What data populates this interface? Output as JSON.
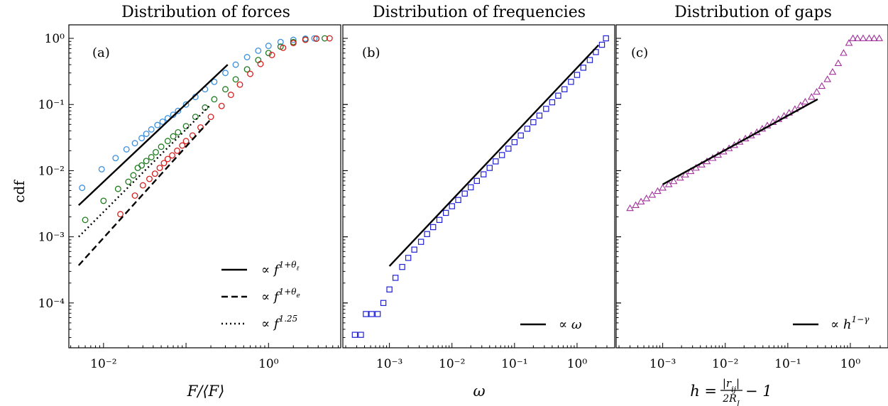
{
  "colors": {
    "light_blue": "#3a8fe0",
    "green": "#1e7a1e",
    "red": "#d62020",
    "blue": "#1f1fd6",
    "purple": "#a0309a",
    "black": "#000000"
  },
  "figure": {
    "ylabel": "cdf",
    "panels": [
      {
        "title": "Distribution of forces",
        "tag": "(a)",
        "xlabel": "F/⟨F⟩"
      },
      {
        "title": "Distribution of frequencies",
        "tag": "(b)",
        "xlabel": "ω"
      },
      {
        "title": "Distribution of gaps",
        "tag": "(c)",
        "xlabel": "h = |rᵢⱼ|/2R_J − 1"
      }
    ]
  },
  "chart_data": [
    {
      "type": "scatter",
      "title": "Distribution of forces",
      "panel_label": "(a)",
      "xlabel": "F/⟨F⟩",
      "ylabel": "cdf",
      "xscale": "log",
      "yscale": "log",
      "xlim": [
        0.0038,
        7.5
      ],
      "ylim": [
        2.1e-05,
        1.6
      ],
      "x_ticks": [
        {
          "value": 0.01,
          "label": "10⁻²"
        },
        {
          "value": 1,
          "label": "10⁰"
        }
      ],
      "y_ticks": [
        {
          "value": 0.0001,
          "label": "10⁻⁴"
        },
        {
          "value": 0.001,
          "label": "10⁻³"
        },
        {
          "value": 0.01,
          "label": "10⁻²"
        },
        {
          "value": 0.1,
          "label": "10⁻¹"
        },
        {
          "value": 1,
          "label": "10⁰"
        }
      ],
      "series": [
        {
          "marker": "circle",
          "color": "#3a8fe0",
          "points": [
            [
              0.0055,
              0.0055
            ],
            [
              0.0095,
              0.0105
            ],
            [
              0.014,
              0.0155
            ],
            [
              0.019,
              0.021
            ],
            [
              0.024,
              0.026
            ],
            [
              0.029,
              0.031
            ],
            [
              0.033,
              0.036
            ],
            [
              0.038,
              0.042
            ],
            [
              0.045,
              0.049
            ],
            [
              0.052,
              0.055
            ],
            [
              0.06,
              0.062
            ],
            [
              0.07,
              0.07
            ],
            [
              0.08,
              0.08
            ],
            [
              0.1,
              0.1
            ],
            [
              0.13,
              0.13
            ],
            [
              0.17,
              0.17
            ],
            [
              0.22,
              0.22
            ],
            [
              0.3,
              0.3
            ],
            [
              0.4,
              0.4
            ],
            [
              0.55,
              0.52
            ],
            [
              0.75,
              0.65
            ],
            [
              1.0,
              0.77
            ],
            [
              1.4,
              0.88
            ],
            [
              2.0,
              0.95
            ],
            [
              2.8,
              0.99
            ],
            [
              3.6,
              1.0
            ]
          ]
        },
        {
          "marker": "circle",
          "color": "#1e7a1e",
          "points": [
            [
              0.006,
              0.0018
            ],
            [
              0.01,
              0.0035
            ],
            [
              0.015,
              0.0053
            ],
            [
              0.02,
              0.0068
            ],
            [
              0.023,
              0.0085
            ],
            [
              0.026,
              0.011
            ],
            [
              0.029,
              0.012
            ],
            [
              0.033,
              0.014
            ],
            [
              0.038,
              0.016
            ],
            [
              0.043,
              0.019
            ],
            [
              0.05,
              0.023
            ],
            [
              0.06,
              0.028
            ],
            [
              0.07,
              0.033
            ],
            [
              0.08,
              0.038
            ],
            [
              0.1,
              0.047
            ],
            [
              0.13,
              0.065
            ],
            [
              0.17,
              0.09
            ],
            [
              0.22,
              0.12
            ],
            [
              0.3,
              0.17
            ],
            [
              0.4,
              0.24
            ],
            [
              0.55,
              0.34
            ],
            [
              0.75,
              0.47
            ],
            [
              1.0,
              0.6
            ],
            [
              1.4,
              0.75
            ],
            [
              2.0,
              0.88
            ],
            [
              2.8,
              0.96
            ],
            [
              3.8,
              0.99
            ],
            [
              4.8,
              1.0
            ]
          ]
        },
        {
          "marker": "circle",
          "color": "#d62020",
          "points": [
            [
              0.016,
              0.0022
            ],
            [
              0.024,
              0.0042
            ],
            [
              0.03,
              0.006
            ],
            [
              0.036,
              0.0075
            ],
            [
              0.042,
              0.009
            ],
            [
              0.048,
              0.011
            ],
            [
              0.054,
              0.013
            ],
            [
              0.06,
              0.015
            ],
            [
              0.068,
              0.017
            ],
            [
              0.078,
              0.02
            ],
            [
              0.09,
              0.024
            ],
            [
              0.1,
              0.028
            ],
            [
              0.12,
              0.034
            ],
            [
              0.15,
              0.045
            ],
            [
              0.2,
              0.065
            ],
            [
              0.27,
              0.095
            ],
            [
              0.35,
              0.14
            ],
            [
              0.45,
              0.2
            ],
            [
              0.6,
              0.29
            ],
            [
              0.8,
              0.41
            ],
            [
              1.1,
              0.56
            ],
            [
              1.5,
              0.72
            ],
            [
              2.0,
              0.85
            ],
            [
              2.8,
              0.95
            ],
            [
              3.8,
              0.99
            ],
            [
              5.5,
              1.0
            ]
          ]
        },
        {
          "type": "line",
          "style": "solid",
          "color": "#000000",
          "name": "∝ f^(1+θℓ)",
          "points": [
            [
              0.005,
              0.003
            ],
            [
              0.32,
              0.4
            ]
          ]
        },
        {
          "type": "line",
          "style": "dashed",
          "color": "#000000",
          "name": "∝ f^(1+θe)",
          "points": [
            [
              0.005,
              0.00037
            ],
            [
              0.2,
              0.06
            ]
          ]
        },
        {
          "type": "line",
          "style": "dotted",
          "color": "#000000",
          "name": "∝ f^1.25",
          "points": [
            [
              0.005,
              0.001
            ],
            [
              0.2,
              0.1
            ]
          ]
        }
      ],
      "legend": {
        "position": "bottom-right",
        "entries": [
          {
            "style": "solid",
            "text": "∝ f^(1+θℓ)"
          },
          {
            "style": "dashed",
            "text": "∝ f^(1+θe)"
          },
          {
            "style": "dotted",
            "text": "∝ f^1.25"
          }
        ]
      }
    },
    {
      "type": "scatter",
      "title": "Distribution of frequencies",
      "panel_label": "(b)",
      "xlabel": "ω",
      "xscale": "log",
      "yscale": "log",
      "xlim": [
        0.00018,
        4.0
      ],
      "ylim": [
        2.1e-05,
        1.6
      ],
      "x_ticks": [
        {
          "value": 0.001,
          "label": "10⁻³"
        },
        {
          "value": 0.01,
          "label": "10⁻²"
        },
        {
          "value": 0.1,
          "label": "10⁻¹"
        },
        {
          "value": 1,
          "label": "10⁰"
        }
      ],
      "series": [
        {
          "marker": "square",
          "color": "#1f1fd6",
          "points": [
            [
              0.00028,
              3.3e-05
            ],
            [
              0.00035,
              3.3e-05
            ],
            [
              0.00042,
              6.8e-05
            ],
            [
              0.00052,
              6.8e-05
            ],
            [
              0.00065,
              6.8e-05
            ],
            [
              0.0008,
              0.0001
            ],
            [
              0.001,
              0.00016
            ],
            [
              0.00125,
              0.00024
            ],
            [
              0.0016,
              0.00035
            ],
            [
              0.002,
              0.00048
            ],
            [
              0.0025,
              0.00064
            ],
            [
              0.0032,
              0.00084
            ],
            [
              0.004,
              0.0011
            ],
            [
              0.005,
              0.0014
            ],
            [
              0.0063,
              0.0018
            ],
            [
              0.008,
              0.0023
            ],
            [
              0.01,
              0.0029
            ],
            [
              0.0126,
              0.0036
            ],
            [
              0.016,
              0.0045
            ],
            [
              0.02,
              0.0056
            ],
            [
              0.025,
              0.007
            ],
            [
              0.032,
              0.0088
            ],
            [
              0.04,
              0.011
            ],
            [
              0.05,
              0.0138
            ],
            [
              0.063,
              0.0172
            ],
            [
              0.08,
              0.0215
            ],
            [
              0.1,
              0.027
            ],
            [
              0.126,
              0.034
            ],
            [
              0.16,
              0.043
            ],
            [
              0.2,
              0.054
            ],
            [
              0.25,
              0.068
            ],
            [
              0.32,
              0.086
            ],
            [
              0.4,
              0.108
            ],
            [
              0.5,
              0.136
            ],
            [
              0.63,
              0.17
            ],
            [
              0.8,
              0.22
            ],
            [
              1.0,
              0.28
            ],
            [
              1.26,
              0.36
            ],
            [
              1.6,
              0.47
            ],
            [
              2.0,
              0.62
            ],
            [
              2.5,
              0.8
            ],
            [
              2.9,
              1.0
            ]
          ]
        },
        {
          "type": "line",
          "style": "solid",
          "color": "#000000",
          "name": "∝ ω",
          "points": [
            [
              0.001,
              0.00036
            ],
            [
              2.2,
              0.79
            ]
          ]
        }
      ],
      "legend": {
        "position": "bottom-right",
        "entries": [
          {
            "style": "solid",
            "text": "∝ ω"
          }
        ]
      }
    },
    {
      "type": "scatter",
      "title": "Distribution of gaps",
      "panel_label": "(c)",
      "xlabel": "h = |rᵢⱼ|/2R_J − 1",
      "xscale": "log",
      "yscale": "log",
      "xlim": [
        0.00018,
        4.0
      ],
      "ylim": [
        2.1e-05,
        1.6
      ],
      "x_ticks": [
        {
          "value": 0.001,
          "label": "10⁻³"
        },
        {
          "value": 0.01,
          "label": "10⁻²"
        },
        {
          "value": 0.1,
          "label": "10⁻¹"
        },
        {
          "value": 1,
          "label": "10⁰"
        }
      ],
      "series": [
        {
          "marker": "triangle",
          "color": "#a0309a",
          "points": [
            [
              0.0003,
              0.0027
            ],
            [
              0.00037,
              0.003
            ],
            [
              0.00045,
              0.0034
            ],
            [
              0.00055,
              0.0038
            ],
            [
              0.00068,
              0.0043
            ],
            [
              0.00083,
              0.0049
            ],
            [
              0.001,
              0.0055
            ],
            [
              0.00125,
              0.0062
            ],
            [
              0.0015,
              0.0069
            ],
            [
              0.0019,
              0.0078
            ],
            [
              0.0023,
              0.0087
            ],
            [
              0.0028,
              0.0098
            ],
            [
              0.0034,
              0.011
            ],
            [
              0.0042,
              0.0123
            ],
            [
              0.0051,
              0.0138
            ],
            [
              0.0063,
              0.0155
            ],
            [
              0.0077,
              0.0173
            ],
            [
              0.0094,
              0.0194
            ],
            [
              0.0115,
              0.0217
            ],
            [
              0.014,
              0.0243
            ],
            [
              0.017,
              0.0272
            ],
            [
              0.021,
              0.0305
            ],
            [
              0.026,
              0.034
            ],
            [
              0.032,
              0.038
            ],
            [
              0.039,
              0.043
            ],
            [
              0.047,
              0.048
            ],
            [
              0.058,
              0.054
            ],
            [
              0.071,
              0.06
            ],
            [
              0.087,
              0.067
            ],
            [
              0.105,
              0.075
            ],
            [
              0.13,
              0.085
            ],
            [
              0.16,
              0.097
            ],
            [
              0.19,
              0.11
            ],
            [
              0.24,
              0.13
            ],
            [
              0.29,
              0.155
            ],
            [
              0.35,
              0.19
            ],
            [
              0.43,
              0.24
            ],
            [
              0.52,
              0.31
            ],
            [
              0.64,
              0.42
            ],
            [
              0.78,
              0.6
            ],
            [
              0.95,
              0.85
            ],
            [
              1.1,
              1.0
            ],
            [
              1.3,
              1.0
            ],
            [
              1.6,
              1.0
            ],
            [
              2.0,
              1.0
            ],
            [
              2.4,
              1.0
            ],
            [
              2.9,
              1.0
            ]
          ]
        },
        {
          "type": "line",
          "style": "solid",
          "color": "#000000",
          "name": "∝ h^(1−γ)",
          "points": [
            [
              0.001,
              0.0062
            ],
            [
              0.3,
              0.12
            ]
          ]
        }
      ],
      "legend": {
        "position": "bottom-right",
        "entries": [
          {
            "style": "solid",
            "text": "∝ h^(1−γ)"
          }
        ]
      }
    }
  ]
}
